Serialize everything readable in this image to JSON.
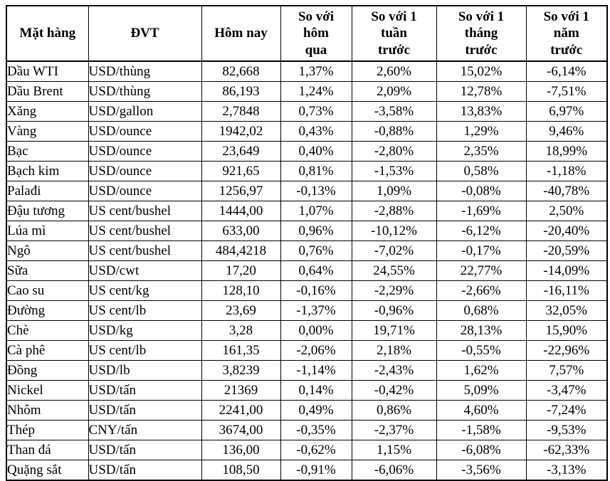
{
  "table": {
    "headers": [
      {
        "label": "Mặt hàng"
      },
      {
        "label": "ĐVT"
      },
      {
        "label": "Hôm nay"
      },
      {
        "label": "So với\nhôm\nqua"
      },
      {
        "label": "So với 1\ntuần\ntrước"
      },
      {
        "label": "So với 1\ntháng\ntrước"
      },
      {
        "label": "So với 1\nnăm\ntrước"
      }
    ],
    "rows": [
      [
        "Dầu WTI",
        "USD/thùng",
        "82,668",
        "1,37%",
        "2,60%",
        "15,02%",
        "-6,14%"
      ],
      [
        "Dầu Brent",
        "USD/thùng",
        "86,193",
        "1,24%",
        "2,09%",
        "12,78%",
        "-7,51%"
      ],
      [
        "Xăng",
        "USD/gallon",
        "2,7848",
        "0,73%",
        "-3,58%",
        "13,83%",
        "6,97%"
      ],
      [
        "Vàng",
        "USD/ounce",
        "1942,02",
        "0,43%",
        "-0,88%",
        "1,29%",
        "9,46%"
      ],
      [
        "Bạc",
        "USD/ounce",
        "23,649",
        "0,40%",
        "-2,80%",
        "2,35%",
        "18,99%"
      ],
      [
        "Bạch kim",
        "USD/ounce",
        "921,65",
        "0,81%",
        "-1,53%",
        "0,58%",
        "-1,18%"
      ],
      [
        "Palađi",
        "USD/ounce",
        "1256,97",
        "-0,13%",
        "1,09%",
        "-0,08%",
        "-40,78%"
      ],
      [
        "Đậu tương",
        "US cent/bushel",
        "1444,00",
        "1,07%",
        "-2,88%",
        "-1,69%",
        "2,50%"
      ],
      [
        "Lúa mì",
        "US cent/bushel",
        "633,00",
        "0,96%",
        "-10,12%",
        "-6,12%",
        "-20,40%"
      ],
      [
        "Ngô",
        "US cent/bushel",
        "484,4218",
        "0,76%",
        "-7,02%",
        "-0,17%",
        "-20,59%"
      ],
      [
        "Sữa",
        "USD/cwt",
        "17,20",
        "0,64%",
        "24,55%",
        "22,77%",
        "-14,09%"
      ],
      [
        "Cao su",
        "US cent/kg",
        "128,10",
        "-0,16%",
        "-2,29%",
        "-2,66%",
        "-16,11%"
      ],
      [
        "Đường",
        "US cent/lb",
        "23,69",
        "-1,37%",
        "-0,96%",
        "0,68%",
        "32,05%"
      ],
      [
        "Chè",
        "USD/kg",
        "3,28",
        "0,00%",
        "19,71%",
        "28,13%",
        "15,90%"
      ],
      [
        "Cà phê",
        "US cent/lb",
        "161,35",
        "-2,06%",
        "2,18%",
        "-0,55%",
        "-22,96%"
      ],
      [
        "Đồng",
        "USD/lb",
        "3,8239",
        "-1,14%",
        "-2,43%",
        "1,62%",
        "7,57%"
      ],
      [
        "Nickel",
        "USD/tấn",
        "21369",
        "0,14%",
        "-0,42%",
        "5,09%",
        "-3,47%"
      ],
      [
        "Nhôm",
        "USD/tấn",
        "2241,00",
        "0,49%",
        "0,86%",
        "4,60%",
        "-7,24%"
      ],
      [
        "Thép",
        "CNY/tấn",
        "3674,00",
        "-0,35%",
        "-2,37%",
        "-1,58%",
        "-9,53%"
      ],
      [
        "Than đá",
        "USD/tấn",
        "136,00",
        "-0,62%",
        "1,15%",
        "-6,08%",
        "-62,33%"
      ],
      [
        "Quặng sắt",
        "USD/tấn",
        "108,50",
        "-0,91%",
        "-6,06%",
        "-3,56%",
        "-3,13%"
      ]
    ]
  }
}
